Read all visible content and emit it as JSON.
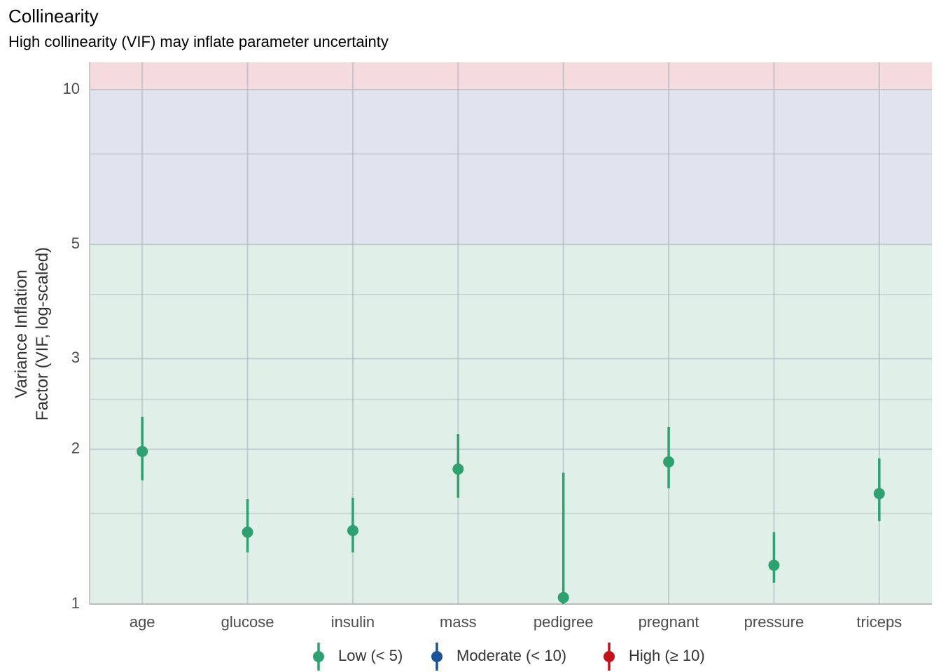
{
  "chart_data": {
    "type": "scatter",
    "title": "Collinearity",
    "subtitle": "High collinearity (VIF) may inflate parameter uncertainty",
    "ylabel_lines": [
      "Variance Inflation",
      "Factor (VIF, log-scaled)"
    ],
    "xlabel": "",
    "y_scale": "log",
    "ylim": [
      1,
      11.3
    ],
    "y_ticks": [
      1,
      2,
      3,
      5,
      10
    ],
    "bands": [
      {
        "name": "Low",
        "from": 1,
        "to": 5,
        "color": "#e0f0e9"
      },
      {
        "name": "Moderate",
        "from": 5,
        "to": 10,
        "color": "#dfe4ef"
      },
      {
        "name": "High",
        "from": 10,
        "to": 11.3,
        "color": "#f5dade"
      }
    ],
    "categories": [
      "age",
      "glucose",
      "insulin",
      "mass",
      "pedigree",
      "pregnant",
      "pressure",
      "triceps"
    ],
    "series": [
      {
        "name": "Low (< 5)",
        "color": "#2fa070",
        "values": [
          1.98,
          1.38,
          1.39,
          1.83,
          1.03,
          1.89,
          1.19,
          1.64
        ],
        "lower": [
          1.74,
          1.26,
          1.26,
          1.61,
          1.0,
          1.68,
          1.1,
          1.45
        ],
        "upper": [
          2.31,
          1.6,
          1.61,
          2.14,
          1.8,
          2.21,
          1.38,
          1.92
        ]
      }
    ],
    "legend": {
      "position": "bottom",
      "items": [
        {
          "label": "Low (< 5)",
          "color": "#2fa070"
        },
        {
          "label": "Moderate (< 10)",
          "color": "#1a5396"
        },
        {
          "label": "High (≥ 10)",
          "color": "#c2111b"
        }
      ]
    },
    "grid": true
  }
}
